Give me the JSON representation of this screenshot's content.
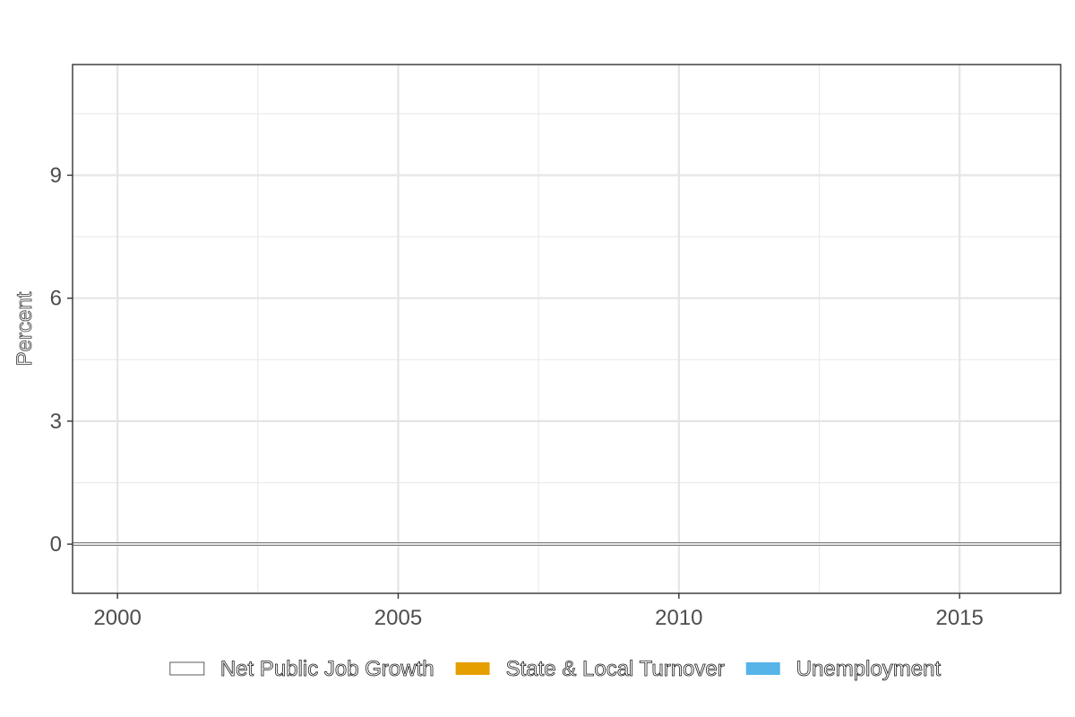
{
  "chart_data": {
    "type": "area",
    "title": "",
    "xlabel": "",
    "ylabel": "Percent",
    "x_ticks": [
      2000,
      2005,
      2010,
      2015
    ],
    "y_ticks": [
      0,
      3,
      6,
      9
    ],
    "xlim": [
      1999.2,
      2016.8
    ],
    "ylim": [
      -1.2,
      11.7
    ],
    "grid": true,
    "legend_position": "bottom",
    "series": [
      {
        "name": "Net Public Job Growth",
        "color": "#ffffff",
        "outline": "#333333",
        "values": []
      },
      {
        "name": "State & Local Turnover",
        "color": "#E69F00",
        "values": []
      },
      {
        "name": "Unemployment",
        "color": "#56B4E9",
        "values": []
      }
    ],
    "reference_line": {
      "y": 0,
      "color": "#333333"
    }
  }
}
